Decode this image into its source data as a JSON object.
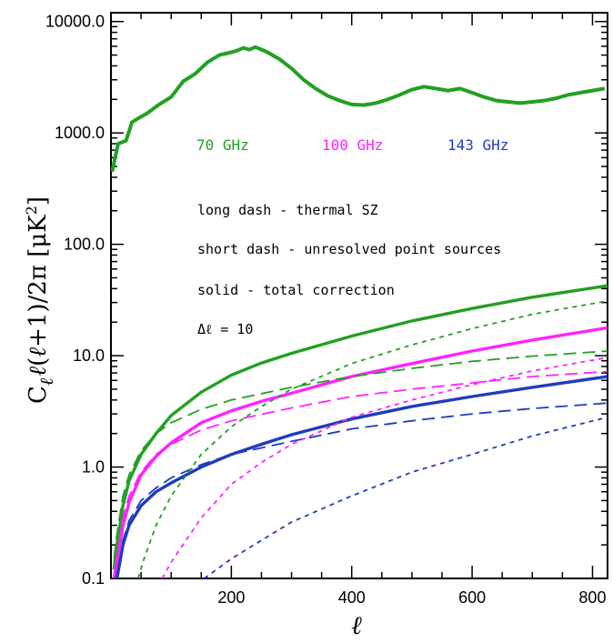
{
  "chart_data": {
    "type": "line",
    "xlabel": "ℓ",
    "ylabel": "Cℓ ℓ(ℓ+1)/2π [μK²]",
    "xlim": [
      0,
      825
    ],
    "ylim": [
      0.1,
      12000
    ],
    "yscale": "log",
    "x_ticks": [
      200,
      400,
      600,
      800
    ],
    "y_ticks": [
      0.1,
      1.0,
      10.0,
      100.0,
      1000.0,
      10000.0
    ],
    "x_tick_labels": [
      "200",
      "400",
      "600",
      "800"
    ],
    "y_tick_labels": [
      "0.1",
      "1.0",
      "10.0",
      "100.0",
      "1000.0",
      "10000.0"
    ],
    "frequency_labels": [
      {
        "text": "70 GHz",
        "color": "#22a022"
      },
      {
        "text": "100 GHz",
        "color": "#ff22ff"
      },
      {
        "text": "143 GHz",
        "color": "#1f3cbf"
      }
    ],
    "legend_lines": [
      "long dash - thermal SZ",
      "short dash - unresolved point sources",
      "solid - total correction",
      "Δℓ = 10"
    ],
    "cmb_spectrum": {
      "x": [
        2,
        12,
        25,
        35,
        45,
        60,
        80,
        100,
        120,
        140,
        160,
        180,
        200,
        210,
        220,
        230,
        240,
        250,
        260,
        280,
        300,
        320,
        340,
        360,
        380,
        400,
        420,
        440,
        460,
        480,
        500,
        520,
        540,
        560,
        580,
        600,
        620,
        640,
        660,
        680,
        700,
        720,
        740,
        760,
        780,
        800,
        820
      ],
      "y": [
        450,
        800,
        850,
        1250,
        1350,
        1500,
        1800,
        2100,
        2900,
        3400,
        4300,
        5000,
        5300,
        5500,
        5800,
        5600,
        5900,
        5600,
        5300,
        4600,
        3800,
        3000,
        2500,
        2150,
        1950,
        1800,
        1780,
        1850,
        2000,
        2200,
        2450,
        2600,
        2500,
        2400,
        2500,
        2300,
        2100,
        1950,
        1900,
        1850,
        1900,
        1950,
        2050,
        2200,
        2300,
        2400,
        2500
      ],
      "series_colors": [
        "#22a022",
        "#ff22ff",
        "#1f3cbf"
      ]
    },
    "series": [
      {
        "component": "total",
        "style": "solid",
        "color": "#22a022",
        "x": [
          5,
          10,
          20,
          30,
          50,
          75,
          100,
          150,
          200,
          250,
          300,
          400,
          500,
          600,
          700,
          825
        ],
        "y": [
          0.12,
          0.2,
          0.45,
          0.75,
          1.3,
          2.0,
          2.9,
          4.7,
          6.7,
          8.6,
          10.5,
          15.0,
          20.5,
          26.5,
          33.5,
          42.5
        ]
      },
      {
        "component": "total",
        "style": "solid",
        "color": "#ff22ff",
        "x": [
          5,
          10,
          20,
          30,
          50,
          75,
          100,
          150,
          200,
          250,
          300,
          400,
          500,
          600,
          700,
          825
        ],
        "y": [
          0.09,
          0.14,
          0.3,
          0.48,
          0.85,
          1.25,
          1.65,
          2.5,
          3.2,
          3.9,
          4.6,
          6.5,
          8.5,
          11.0,
          13.8,
          17.8
        ]
      },
      {
        "component": "total",
        "style": "solid",
        "color": "#1f3cbf",
        "x": [
          5,
          10,
          20,
          30,
          50,
          75,
          100,
          150,
          200,
          250,
          300,
          400,
          500,
          600,
          700,
          825
        ],
        "y": [
          0.07,
          0.1,
          0.2,
          0.3,
          0.45,
          0.6,
          0.72,
          1.0,
          1.3,
          1.6,
          1.95,
          2.7,
          3.5,
          4.3,
          5.2,
          6.5
        ]
      },
      {
        "component": "thermal SZ",
        "style": "long-dash",
        "color": "#22a022",
        "x": [
          5,
          10,
          20,
          30,
          50,
          75,
          100,
          150,
          200,
          300,
          400,
          500,
          600,
          700,
          825
        ],
        "y": [
          0.15,
          0.25,
          0.55,
          0.85,
          1.4,
          2.0,
          2.5,
          3.3,
          4.0,
          5.2,
          6.5,
          7.7,
          8.9,
          9.9,
          11.0
        ]
      },
      {
        "component": "thermal SZ",
        "style": "long-dash",
        "color": "#ff22ff",
        "x": [
          5,
          10,
          20,
          30,
          50,
          75,
          100,
          150,
          200,
          300,
          400,
          500,
          600,
          700,
          825
        ],
        "y": [
          0.1,
          0.16,
          0.35,
          0.55,
          0.9,
          1.3,
          1.6,
          2.15,
          2.6,
          3.4,
          4.3,
          5.0,
          5.7,
          6.5,
          7.2
        ]
      },
      {
        "component": "thermal SZ",
        "style": "long-dash",
        "color": "#1f3cbf",
        "x": [
          5,
          10,
          20,
          30,
          50,
          75,
          100,
          150,
          200,
          300,
          400,
          500,
          600,
          700,
          825
        ],
        "y": [
          0.07,
          0.1,
          0.22,
          0.33,
          0.5,
          0.65,
          0.8,
          1.05,
          1.3,
          1.7,
          2.2,
          2.6,
          3.0,
          3.35,
          3.75
        ]
      },
      {
        "component": "unresolved point sources",
        "style": "short-dash",
        "color": "#22a022",
        "x": [
          45,
          55,
          75,
          100,
          150,
          200,
          250,
          300,
          400,
          500,
          600,
          700,
          825
        ],
        "y": [
          0.1,
          0.15,
          0.3,
          0.55,
          1.3,
          2.3,
          3.5,
          5.0,
          8.5,
          12.5,
          17.5,
          23.5,
          31.0
        ]
      },
      {
        "component": "unresolved point sources",
        "style": "short-dash",
        "color": "#ff22ff",
        "x": [
          85,
          100,
          150,
          200,
          250,
          300,
          400,
          500,
          600,
          700,
          825
        ],
        "y": [
          0.1,
          0.14,
          0.35,
          0.7,
          1.1,
          1.6,
          2.8,
          4.0,
          5.5,
          7.3,
          9.6
        ]
      },
      {
        "component": "unresolved point sources",
        "style": "short-dash",
        "color": "#1f3cbf",
        "x": [
          155,
          200,
          250,
          300,
          400,
          500,
          600,
          700,
          825
        ],
        "y": [
          0.1,
          0.15,
          0.22,
          0.32,
          0.55,
          0.9,
          1.3,
          1.9,
          2.8
        ]
      }
    ]
  }
}
